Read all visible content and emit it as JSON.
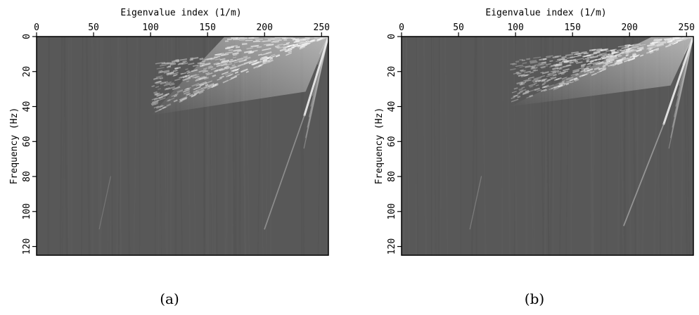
{
  "chart_data": [
    {
      "type": "heatmap",
      "caption": "(a)",
      "xlabel": "Eigenvalue index (1/m)",
      "ylabel": "Frequency (Hz)",
      "xlim": [
        0,
        256
      ],
      "ylim": [
        0,
        125
      ],
      "y_inverted": true,
      "x_axis_position": "top",
      "xticks": [
        0,
        50,
        100,
        150,
        200,
        250
      ],
      "yticks": [
        0,
        20,
        40,
        60,
        80,
        100,
        120
      ],
      "colormap": "gray",
      "background_color": "#585858",
      "features": [
        {
          "kind": "energy-fan",
          "apex": [
            256,
            0
          ],
          "spread_x_at_0hz": [
            165,
            256
          ],
          "low_edge_x": 100,
          "low_edge_y": 45,
          "intensity": 1.0
        },
        {
          "kind": "linear-event",
          "from": [
            256,
            0
          ],
          "to": [
            235,
            45
          ],
          "intensity": 0.85
        },
        {
          "kind": "linear-event",
          "from": [
            235,
            45
          ],
          "to": [
            200,
            110
          ],
          "intensity": 0.35
        },
        {
          "kind": "linear-event",
          "from": [
            65,
            80
          ],
          "to": [
            55,
            110
          ],
          "intensity": 0.15
        }
      ]
    },
    {
      "type": "heatmap",
      "caption": "(b)",
      "xlabel": "Eigenvalue index (1/m)",
      "ylabel": "Frequency (Hz)",
      "xlim": [
        0,
        256
      ],
      "ylim": [
        0,
        125
      ],
      "y_inverted": true,
      "x_axis_position": "top",
      "xticks": [
        0,
        50,
        100,
        150,
        200,
        250
      ],
      "yticks": [
        0,
        20,
        40,
        60,
        80,
        100,
        120
      ],
      "colormap": "gray",
      "background_color": "#585858",
      "features": [
        {
          "kind": "energy-fan",
          "apex": [
            256,
            0
          ],
          "spread_x_at_0hz": [
            220,
            256
          ],
          "low_edge_x": 95,
          "low_edge_y": 40,
          "intensity": 0.95
        },
        {
          "kind": "linear-event",
          "from": [
            256,
            0
          ],
          "to": [
            230,
            50
          ],
          "intensity": 0.85
        },
        {
          "kind": "linear-event",
          "from": [
            230,
            50
          ],
          "to": [
            195,
            108
          ],
          "intensity": 0.4
        },
        {
          "kind": "linear-event",
          "from": [
            70,
            80
          ],
          "to": [
            60,
            110
          ],
          "intensity": 0.2
        }
      ]
    }
  ]
}
